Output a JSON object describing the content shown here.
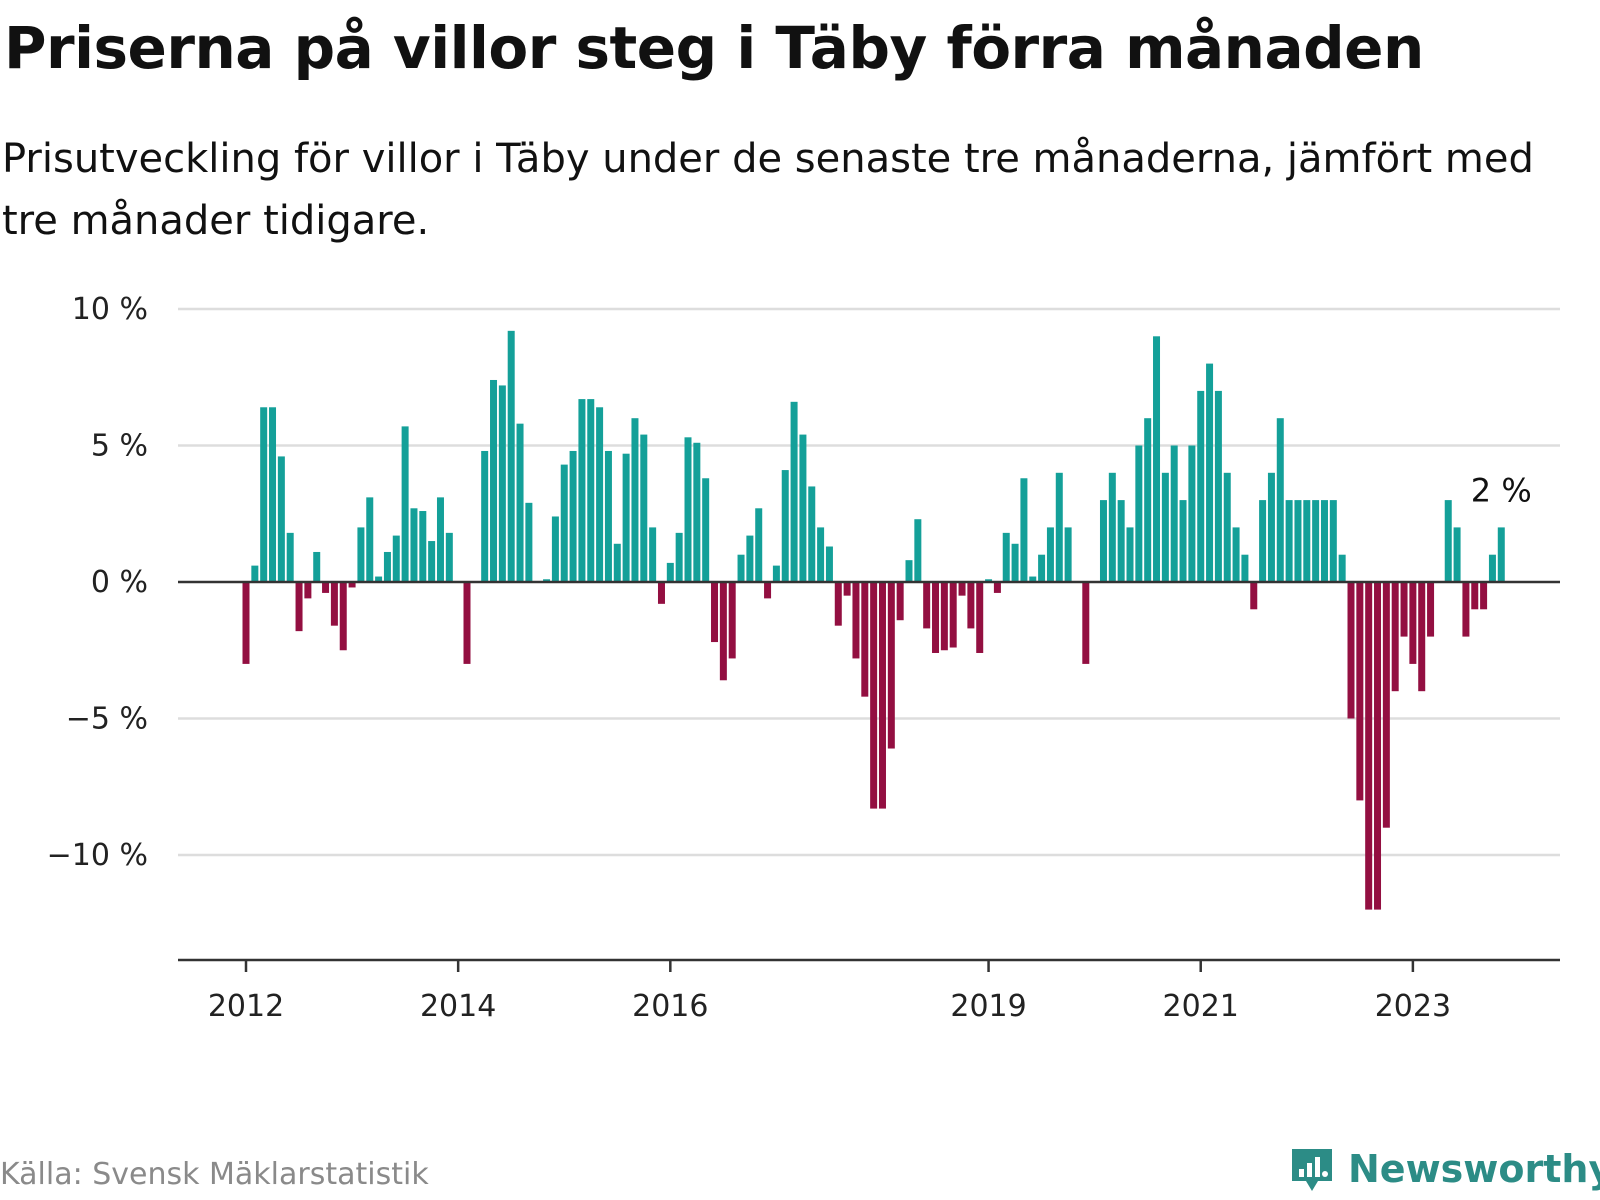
{
  "title": "Priserna på villor steg i Täby förra månaden",
  "subtitle": "Prisutveckling för villor i Täby under de senaste tre månaderna, jämfört med tre månader tidigare.",
  "source": "Källa: Svensk Mäklarstatistik",
  "brand": "Newsworthy",
  "colors": {
    "positive": "#14a099",
    "negative": "#930f41",
    "grid": "#dddddd",
    "axis": "#333333",
    "brand": "#2c8c86"
  },
  "chart_data": {
    "type": "bar",
    "title": "Priserna på villor steg i Täby förra månaden",
    "xlabel": "",
    "ylabel": "",
    "ylim": [
      -12,
      10
    ],
    "yticks": [
      10,
      5,
      0,
      -5,
      -10
    ],
    "ytick_labels": [
      "10 %",
      "5 %",
      "0 %",
      "−5 %",
      "−10 %"
    ],
    "xticks": [
      {
        "label": "2012",
        "month_index": 0
      },
      {
        "label": "2014",
        "month_index": 24
      },
      {
        "label": "2016",
        "month_index": 48
      },
      {
        "label": "2019",
        "month_index": 84
      },
      {
        "label": "2021",
        "month_index": 108
      },
      {
        "label": "2023",
        "month_index": 132
      }
    ],
    "start": "2012-01",
    "end_label": "2 %",
    "values": [
      -3.0,
      0.6,
      6.4,
      6.4,
      4.6,
      1.8,
      -1.8,
      -0.6,
      1.1,
      -0.4,
      -1.6,
      -2.5,
      -0.2,
      2.0,
      3.1,
      0.2,
      1.1,
      1.7,
      5.7,
      2.7,
      2.6,
      1.5,
      3.1,
      1.8,
      0.0,
      -3.0,
      0.0,
      4.8,
      7.4,
      7.2,
      9.2,
      5.8,
      2.9,
      0.0,
      0.1,
      2.4,
      4.3,
      4.8,
      6.7,
      6.7,
      6.4,
      4.8,
      1.4,
      4.7,
      6.0,
      5.4,
      2.0,
      -0.8,
      0.7,
      1.8,
      5.3,
      5.1,
      3.8,
      -2.2,
      -3.6,
      -2.8,
      1.0,
      1.7,
      2.7,
      -0.6,
      0.6,
      4.1,
      6.6,
      5.4,
      3.5,
      2.0,
      1.3,
      -1.6,
      -0.5,
      -2.8,
      -4.2,
      -8.3,
      -8.3,
      -6.1,
      -1.4,
      0.8,
      2.3,
      -1.7,
      -2.6,
      -2.5,
      -2.4,
      -0.5,
      -1.7,
      -2.6,
      0.1,
      -0.4,
      1.8,
      1.4,
      3.8,
      0.2,
      1.0,
      2.0,
      4.0,
      2.0,
      0.0,
      -3.0,
      0.0,
      3.0,
      4.0,
      3.0,
      2.0,
      5.0,
      6.0,
      9.0,
      4.0,
      5.0,
      3.0,
      5.0,
      7.0,
      8.0,
      7.0,
      4.0,
      2.0,
      1.0,
      -1.0,
      3.0,
      4.0,
      6.0,
      3.0,
      3.0,
      3.0,
      3.0,
      3.0,
      3.0,
      1.0,
      -5.0,
      -8.0,
      -12.0,
      -12.0,
      -9.0,
      -4.0,
      -2.0,
      -3.0,
      -4.0,
      -2.0,
      0.0,
      3.0,
      2.0,
      -2.0,
      -1.0,
      -1.0,
      1.0,
      2.0
    ]
  }
}
